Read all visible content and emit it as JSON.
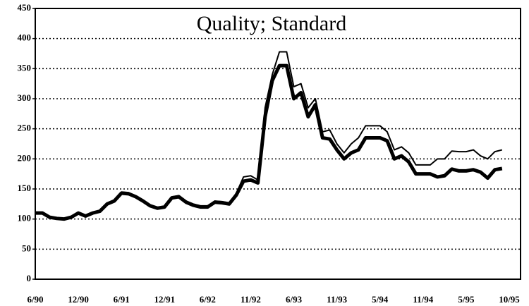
{
  "chart_data": {
    "type": "line",
    "title": "Quality; Standard",
    "categories": [
      "6/90",
      null,
      null,
      null,
      null,
      null,
      "12/90",
      null,
      null,
      null,
      null,
      null,
      "6/91",
      null,
      null,
      null,
      null,
      null,
      "12/91",
      null,
      null,
      null,
      null,
      null,
      "6/92",
      null,
      null,
      null,
      null,
      null,
      "11/92",
      null,
      null,
      null,
      null,
      null,
      "6/93",
      null,
      null,
      null,
      null,
      null,
      "11/93",
      null,
      null,
      null,
      null,
      null,
      "5/94",
      null,
      null,
      null,
      null,
      null,
      "11/94",
      null,
      null,
      null,
      null,
      null,
      "5/95",
      null,
      null,
      null,
      null,
      null,
      "10/95"
    ],
    "series": [
      {
        "color": "#000000",
        "width": 2,
        "values": [
          110,
          111,
          104,
          102,
          101,
          104,
          111,
          106,
          111,
          114,
          126,
          132,
          145,
          144,
          138,
          131,
          123,
          119,
          121,
          137,
          139,
          130,
          125,
          122,
          122,
          130,
          129,
          127,
          143,
          170,
          172,
          165,
          285,
          340,
          378,
          378,
          320,
          325,
          285,
          300,
          245,
          248,
          225,
          210,
          225,
          235,
          255,
          255,
          255,
          245,
          215,
          220,
          210,
          190,
          190,
          190,
          200,
          200,
          213,
          212,
          212,
          215,
          205,
          200,
          212,
          215,
          null
        ]
      },
      {
        "color": "#000000",
        "width": 5,
        "values": [
          110,
          110,
          103,
          101,
          100,
          103,
          110,
          105,
          110,
          113,
          125,
          130,
          143,
          142,
          137,
          130,
          122,
          118,
          120,
          135,
          137,
          128,
          123,
          120,
          120,
          128,
          127,
          125,
          140,
          163,
          165,
          160,
          270,
          330,
          355,
          355,
          300,
          310,
          270,
          290,
          235,
          233,
          215,
          200,
          210,
          215,
          235,
          235,
          235,
          230,
          200,
          205,
          195,
          175,
          175,
          175,
          170,
          172,
          183,
          180,
          180,
          182,
          178,
          168,
          182,
          184,
          null
        ]
      }
    ],
    "ylim": [
      0,
      450
    ],
    "yticks": [
      0,
      50,
      100,
      150,
      200,
      250,
      300,
      350,
      400,
      450
    ],
    "grid": true
  }
}
